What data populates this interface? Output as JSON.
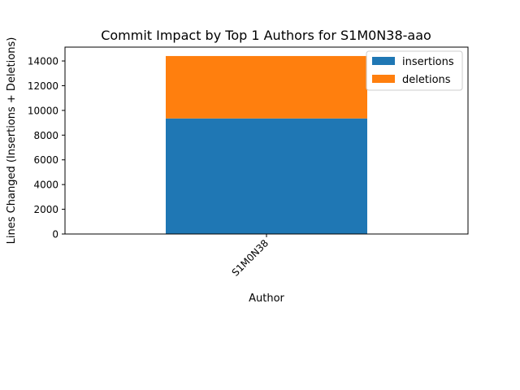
{
  "chart_data": {
    "type": "bar",
    "stacked": true,
    "title": "Commit Impact by Top 1 Authors for S1M0N38-aao",
    "xlabel": "Author",
    "ylabel": "Lines Changed (Insertions + Deletions)",
    "categories": [
      "S1M0N38"
    ],
    "series": [
      {
        "name": "insertions",
        "values": [
          9350
        ],
        "color": "#1f77b4"
      },
      {
        "name": "deletions",
        "values": [
          5050
        ],
        "color": "#ff7f0e"
      }
    ],
    "ylim": [
      0,
      15120
    ],
    "yticks": [
      0,
      2000,
      4000,
      6000,
      8000,
      10000,
      12000,
      14000
    ],
    "grid": false,
    "legend_position": "upper right"
  }
}
